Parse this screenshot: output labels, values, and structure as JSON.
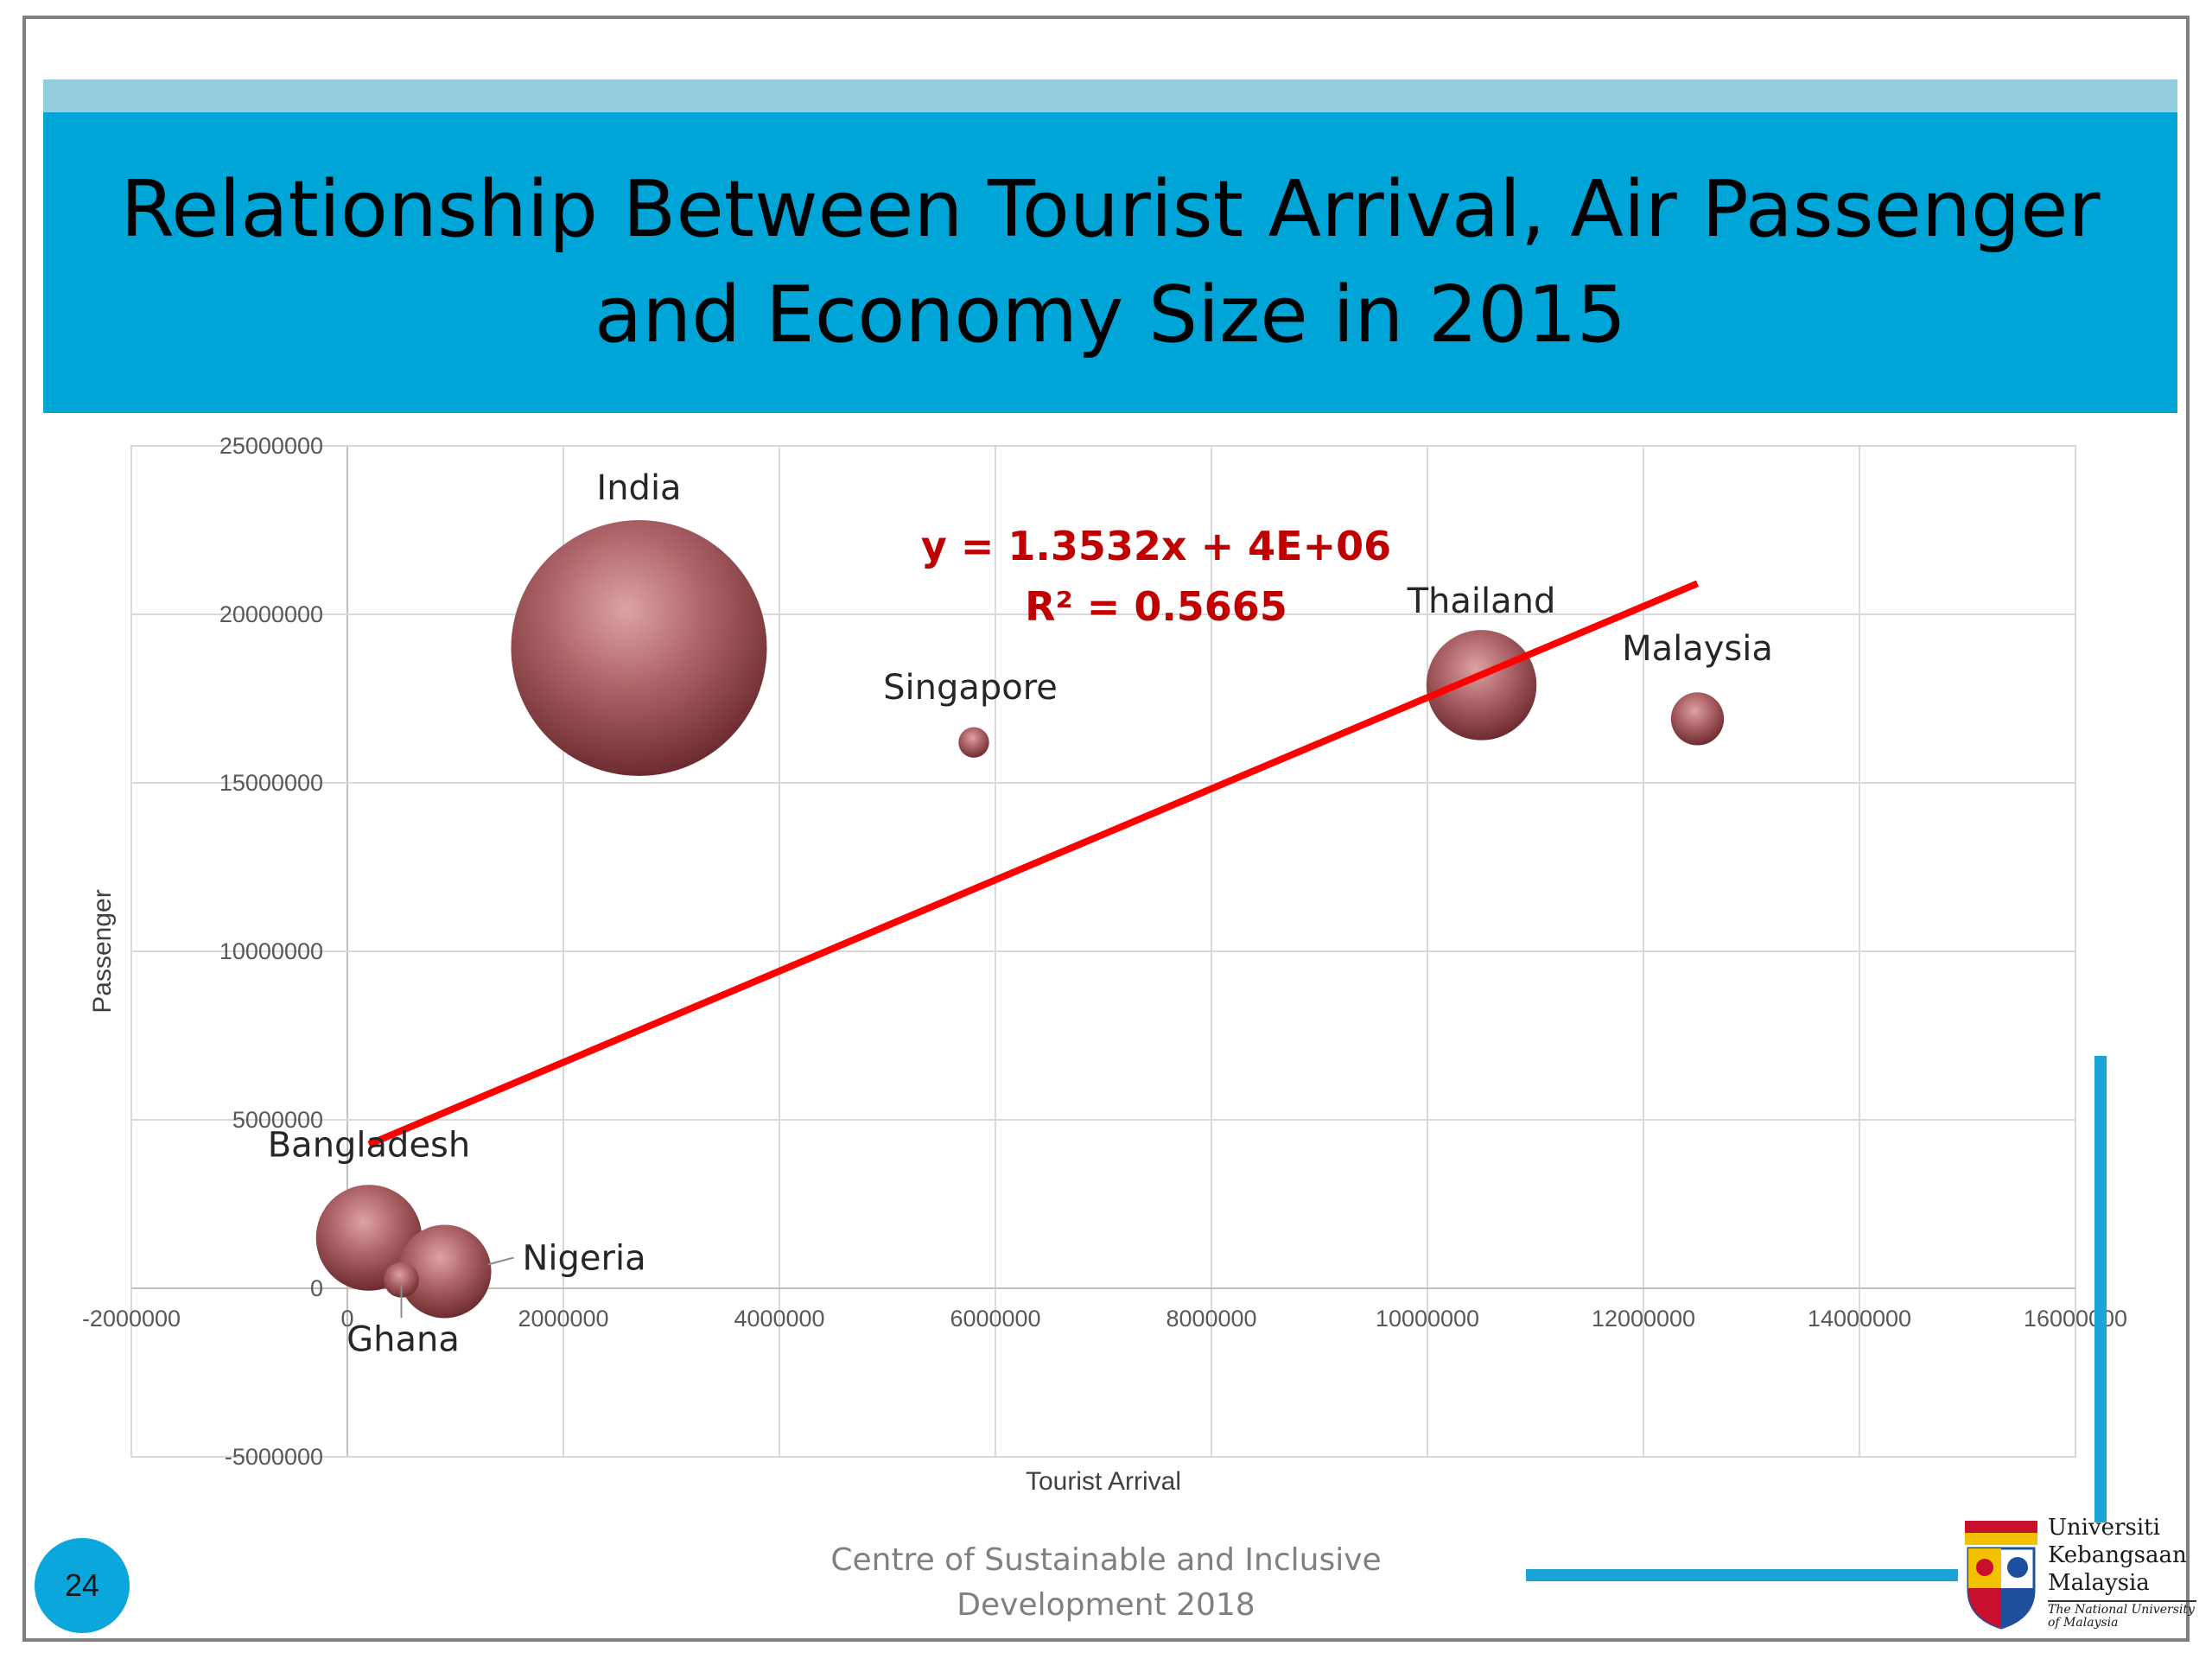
{
  "slide": {
    "title": "Relationship Between Tourist Arrival, Air Passenger and Economy Size in 2015",
    "page_number": "24",
    "footer_line1": "Centre of Sustainable and Inclusive",
    "footer_line2": "Development 2018",
    "accent_color": "#00a5d8"
  },
  "logo": {
    "line1": "Universiti",
    "line2": "Kebangsaan",
    "line3": "Malaysia",
    "subtitle_line1": "The National University",
    "subtitle_line2": "of Malaysia"
  },
  "chart_data": {
    "type": "bubble",
    "title": "",
    "xlabel": "Tourist Arrival",
    "ylabel": "Passenger",
    "xlim": [
      -2000000,
      16000000
    ],
    "ylim": [
      -5000000,
      25000000
    ],
    "x_ticks": [
      -2000000,
      0,
      2000000,
      4000000,
      6000000,
      8000000,
      10000000,
      12000000,
      14000000,
      16000000
    ],
    "y_ticks": [
      -5000000,
      0,
      5000000,
      10000000,
      15000000,
      20000000,
      25000000
    ],
    "grid": true,
    "bubble_color": "#a9585c",
    "points": [
      {
        "label": "India",
        "x": 2700000,
        "y": 19000000,
        "size": 2.1
      },
      {
        "label": "Singapore",
        "x": 5800000,
        "y": 16200000,
        "size": 0.03
      },
      {
        "label": "Thailand",
        "x": 10500000,
        "y": 17900000,
        "size": 0.39
      },
      {
        "label": "Malaysia",
        "x": 12500000,
        "y": 16900000,
        "size": 0.09
      },
      {
        "label": "Bangladesh",
        "x": 200000,
        "y": 1500000,
        "size": 0.36
      },
      {
        "label": "Nigeria",
        "x": 900000,
        "y": 500000,
        "size": 0.28
      },
      {
        "label": "Ghana",
        "x": 500000,
        "y": 250000,
        "size": 0.04
      }
    ],
    "trendline": {
      "slope": 1.3532,
      "intercept": 4000000,
      "x_range": [
        200000,
        12500000
      ],
      "color": "#ff0000",
      "equation": "y = 1.3532x + 4E+06",
      "r_squared": "R² = 0.5665"
    }
  }
}
